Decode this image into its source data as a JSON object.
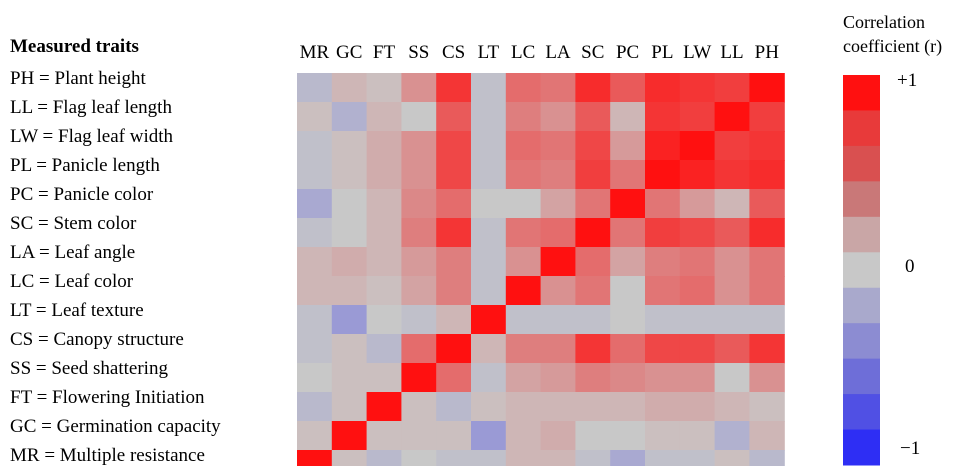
{
  "traits_title": "Measured traits",
  "traits": [
    "PH = Plant height",
    "LL = Flag leaf length",
    "LW = Flag leaf width",
    "PL = Panicle length",
    "PC = Panicle color",
    "SC = Stem color",
    "LA = Leaf angle",
    "LC = Leaf color",
    "LT = Leaf texture",
    "CS = Canopy structure",
    "SS = Seed shattering",
    "FT = Flowering  Initiation",
    "GC = Germination capacity",
    "MR = Multiple resistance"
  ],
  "colorbar": {
    "title_line1": "Correlation",
    "title_line2": "coefficient (r)",
    "tick_top": "+1",
    "tick_mid": "0",
    "tick_bottom": "−1",
    "colors": [
      "#ff1010",
      "#e83a3a",
      "#d95050",
      "#c97878",
      "#c9a6a6",
      "#c8c8c8",
      "#a9a9cc",
      "#8c8cd2",
      "#6e6ed8",
      "#5050e4",
      "#2e2ef4"
    ]
  },
  "chart_data": {
    "type": "heatmap",
    "x_labels": [
      "MR",
      "GC",
      "FT",
      "SS",
      "CS",
      "LT",
      "LC",
      "LA",
      "SC",
      "PC",
      "PL",
      "LW",
      "LL",
      "PH"
    ],
    "y_labels": [
      "PH",
      "LL",
      "LW",
      "PL",
      "PC",
      "SC",
      "LA",
      "LC",
      "LT",
      "CS",
      "SS",
      "FT",
      "GC",
      "MR"
    ],
    "values": [
      [
        -0.1,
        0.1,
        0.05,
        0.3,
        0.8,
        -0.05,
        0.5,
        0.45,
        0.85,
        0.6,
        0.85,
        0.8,
        0.75,
        1.0
      ],
      [
        0.05,
        -0.15,
        0.1,
        0.0,
        0.6,
        -0.05,
        0.4,
        0.3,
        0.6,
        0.1,
        0.8,
        0.75,
        1.0,
        0.75
      ],
      [
        -0.05,
        0.05,
        0.15,
        0.3,
        0.7,
        -0.05,
        0.5,
        0.45,
        0.7,
        0.25,
        0.9,
        1.0,
        0.75,
        0.8
      ],
      [
        -0.05,
        0.05,
        0.15,
        0.3,
        0.7,
        -0.05,
        0.45,
        0.4,
        0.75,
        0.45,
        1.0,
        0.9,
        0.8,
        0.85
      ],
      [
        -0.2,
        0.0,
        0.1,
        0.35,
        0.5,
        0.0,
        0.0,
        0.2,
        0.45,
        1.0,
        0.45,
        0.25,
        0.1,
        0.6
      ],
      [
        -0.05,
        0.0,
        0.1,
        0.4,
        0.8,
        -0.05,
        0.45,
        0.5,
        1.0,
        0.45,
        0.75,
        0.7,
        0.6,
        0.85
      ],
      [
        0.1,
        0.15,
        0.1,
        0.25,
        0.4,
        -0.05,
        0.3,
        1.0,
        0.5,
        0.2,
        0.4,
        0.45,
        0.3,
        0.45
      ],
      [
        0.1,
        0.1,
        0.05,
        0.2,
        0.4,
        -0.05,
        1.0,
        0.3,
        0.45,
        0.0,
        0.45,
        0.5,
        0.3,
        0.45
      ],
      [
        -0.05,
        -0.3,
        0.0,
        -0.05,
        0.1,
        1.0,
        -0.05,
        -0.05,
        -0.05,
        0.0,
        -0.05,
        -0.05,
        -0.05,
        -0.05
      ],
      [
        -0.05,
        0.05,
        -0.1,
        0.5,
        1.0,
        0.1,
        0.4,
        0.4,
        0.8,
        0.5,
        0.7,
        0.7,
        0.6,
        0.8
      ],
      [
        0.0,
        0.05,
        0.05,
        1.0,
        0.5,
        -0.05,
        0.2,
        0.25,
        0.4,
        0.35,
        0.3,
        0.3,
        0.0,
        0.3
      ],
      [
        -0.1,
        0.05,
        1.0,
        0.05,
        -0.1,
        0.05,
        0.1,
        0.1,
        0.1,
        0.1,
        0.15,
        0.15,
        0.1,
        0.05
      ],
      [
        0.05,
        1.0,
        0.05,
        0.05,
        0.05,
        -0.3,
        0.1,
        0.15,
        0.0,
        0.0,
        0.05,
        0.05,
        -0.15,
        0.1
      ],
      [
        1.0,
        0.05,
        -0.1,
        0.0,
        -0.05,
        -0.05,
        0.1,
        0.1,
        -0.05,
        -0.2,
        -0.05,
        -0.05,
        0.05,
        -0.1
      ]
    ],
    "range": [
      -1,
      1
    ]
  }
}
